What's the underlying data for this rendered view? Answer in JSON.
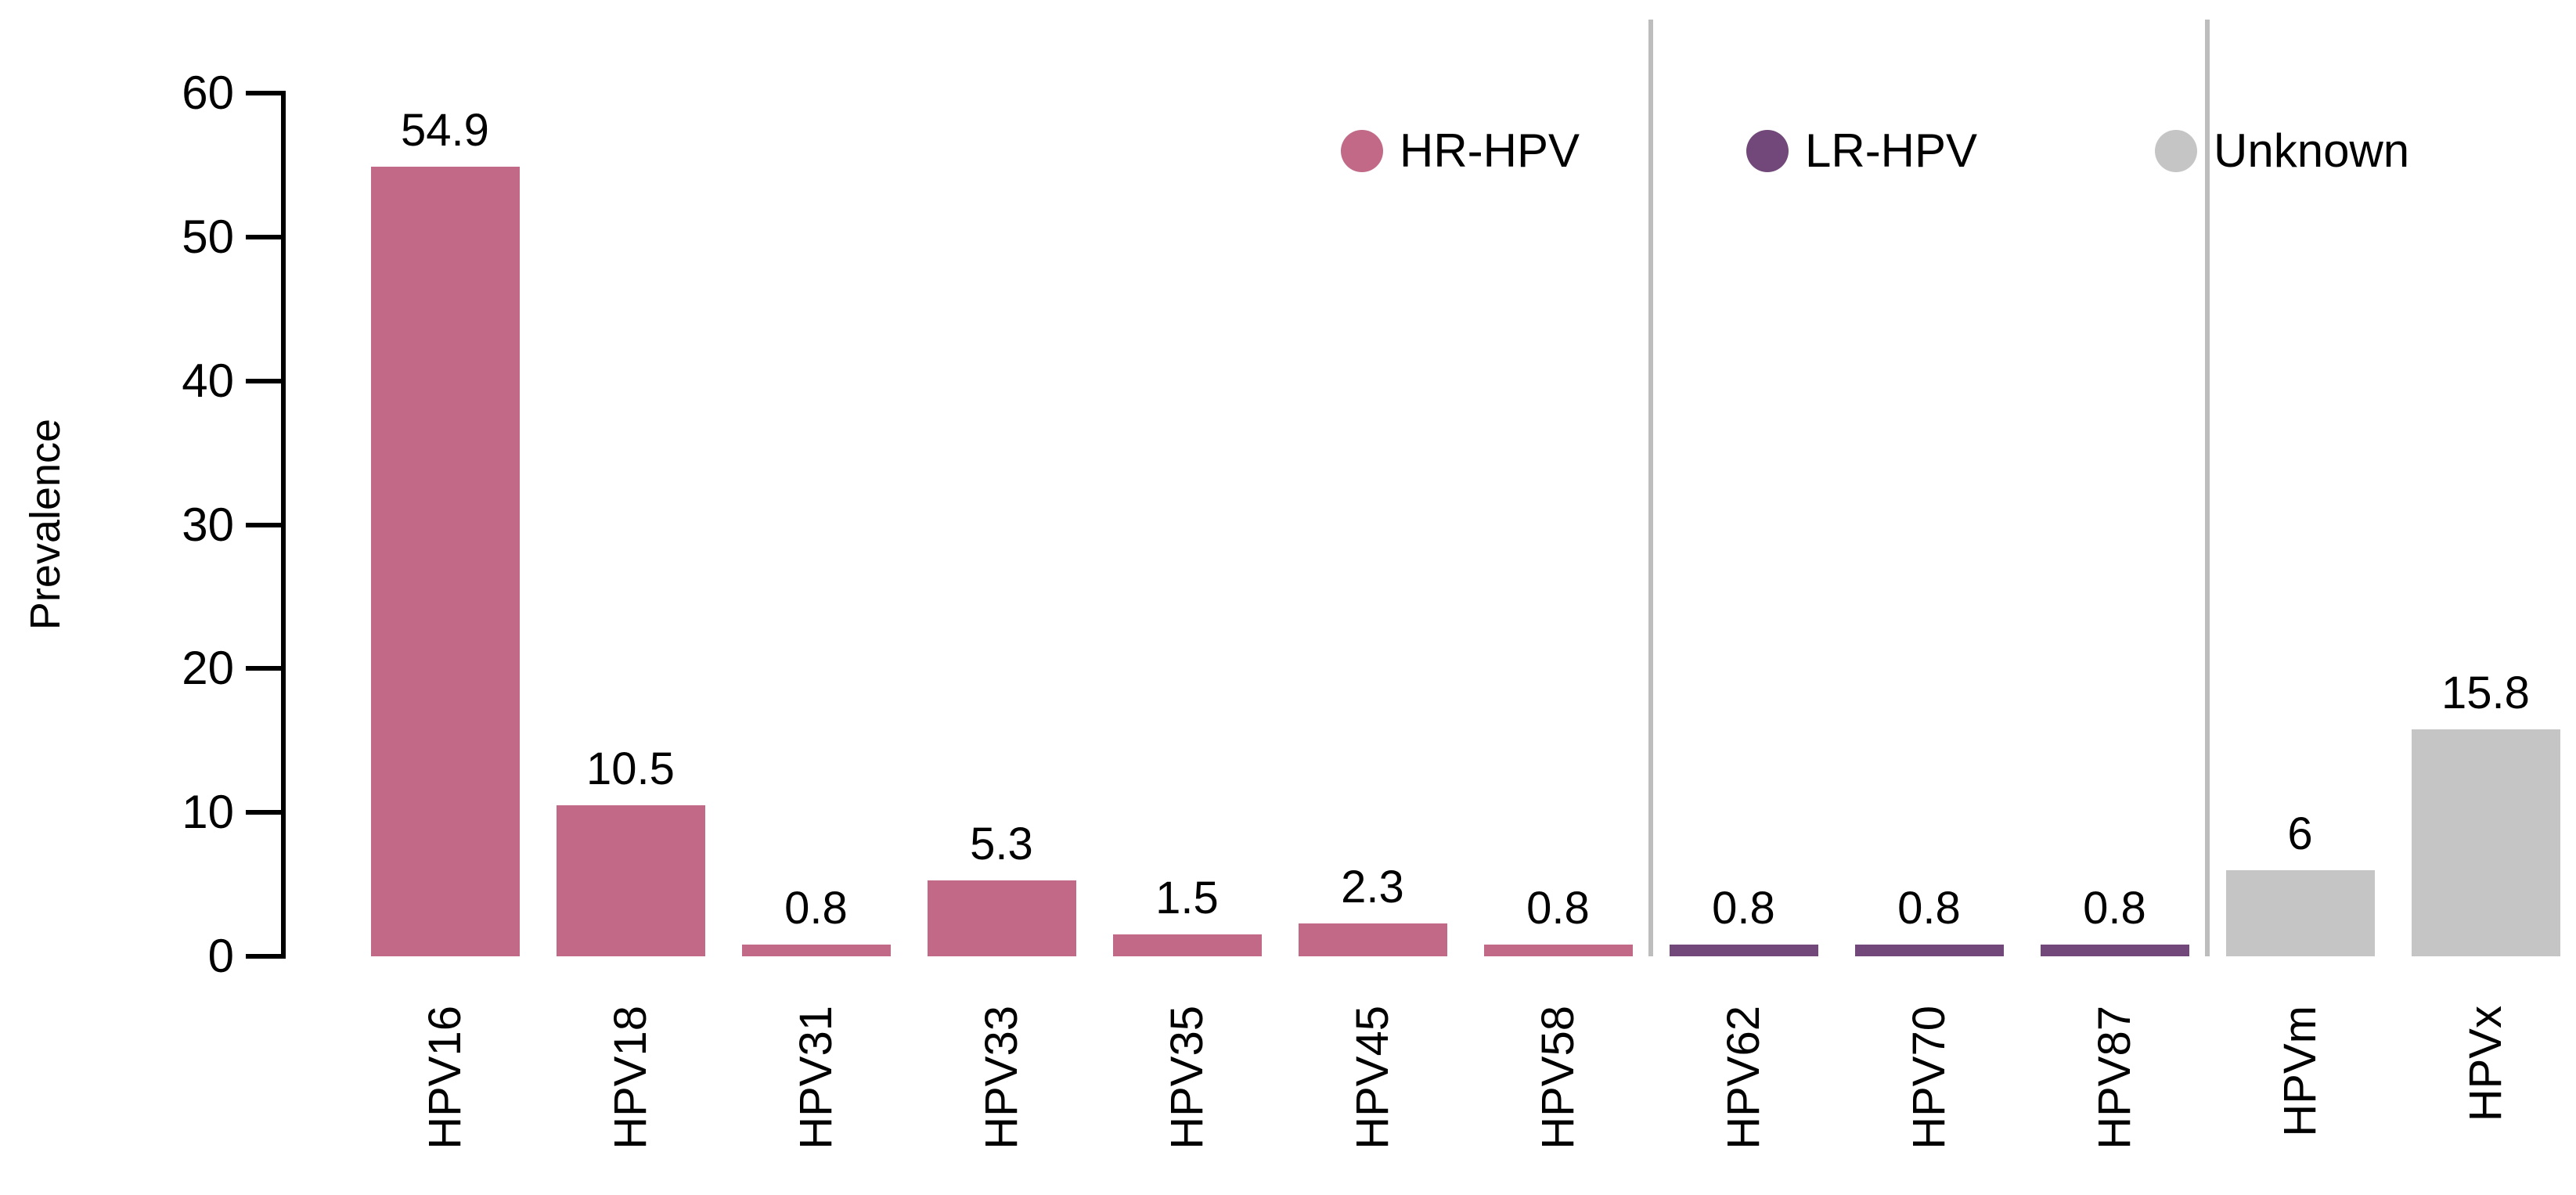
{
  "chart_data": {
    "type": "bar",
    "title": "",
    "ylabel": "Prevalence",
    "xlabel": "",
    "ylim": [
      0,
      60
    ],
    "yticks": [
      0,
      10,
      20,
      30,
      40,
      50,
      60
    ],
    "grid": false,
    "legend_position": "top",
    "categories": [
      "HPV16",
      "HPV18",
      "HPV31",
      "HPV33",
      "HPV35",
      "HPV45",
      "HPV58",
      "HPV62",
      "HPV70",
      "HPV87",
      "HPVm",
      "HPVx"
    ],
    "values": [
      54.9,
      10.5,
      0.8,
      5.3,
      1.5,
      2.3,
      0.8,
      0.8,
      0.8,
      0.8,
      6,
      15.8
    ],
    "value_labels": [
      "54.9",
      "10.5",
      "0.8",
      "5.3",
      "1.5",
      "2.3",
      "0.8",
      "0.8",
      "0.8",
      "0.8",
      "6",
      "15.8"
    ],
    "groups": [
      "HR-HPV",
      "HR-HPV",
      "HR-HPV",
      "HR-HPV",
      "HR-HPV",
      "HR-HPV",
      "HR-HPV",
      "LR-HPV",
      "LR-HPV",
      "LR-HPV",
      "Unknown",
      "Unknown"
    ],
    "group_colors": {
      "HR-HPV": "#C16986",
      "LR-HPV": "#714879",
      "Unknown": "#C5C5C5"
    },
    "legend": [
      {
        "label": "HR-HPV",
        "color": "#C16986"
      },
      {
        "label": "LR-HPV",
        "color": "#714879"
      },
      {
        "label": "Unknown",
        "color": "#C5C5C5"
      }
    ],
    "separators_before": [
      "HPV62",
      "HPVm"
    ]
  },
  "colors": {
    "axis": "#000000",
    "separator": "#BDBDBD",
    "text": "#000000",
    "background": "#FFFFFF"
  }
}
